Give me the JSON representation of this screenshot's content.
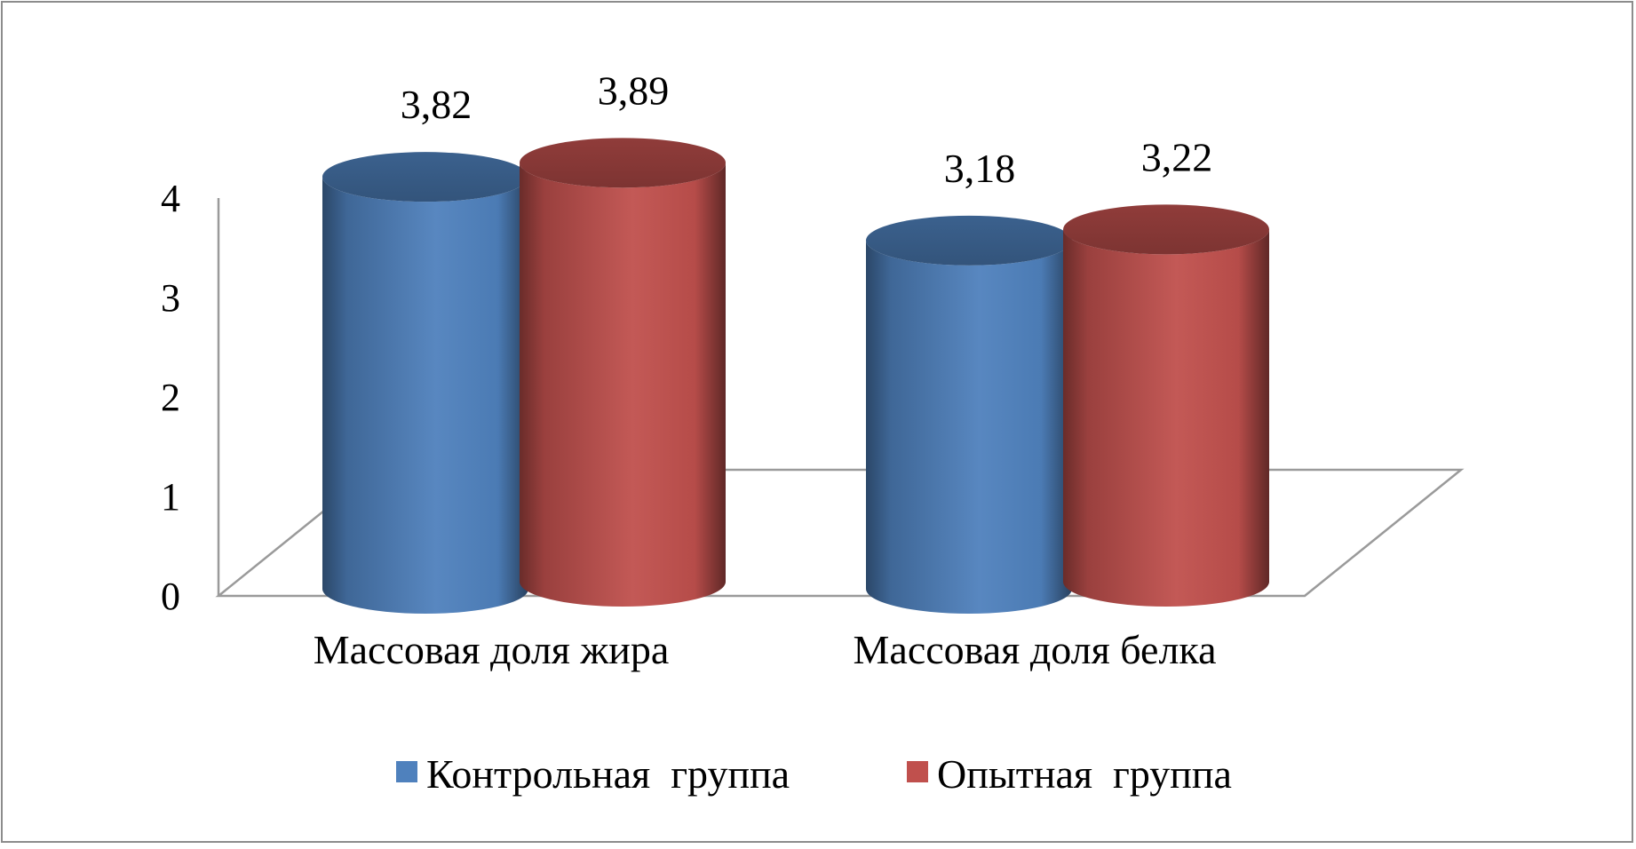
{
  "chart_data": {
    "type": "bar",
    "style": "3d-cylinder",
    "title": "",
    "xlabel": "",
    "ylabel": "",
    "categories": [
      "Массовая доля жира",
      "Массовая доля белка"
    ],
    "series": [
      {
        "name": "Контрольная  группа",
        "values": [
          3.82,
          3.18
        ],
        "labels": [
          "3,82",
          "3,18"
        ],
        "color": "#4f81bd"
      },
      {
        "name": "Опытная  группа",
        "values": [
          3.89,
          3.22
        ],
        "labels": [
          "3,89",
          "3,22"
        ],
        "color": "#c0504d"
      }
    ],
    "ylim": [
      0,
      4
    ],
    "yticks": [
      0,
      1,
      2,
      3,
      4
    ],
    "ytick_labels": [
      "0",
      "1",
      "2",
      "3",
      "4"
    ],
    "grid": false,
    "legend_position": "bottom"
  }
}
